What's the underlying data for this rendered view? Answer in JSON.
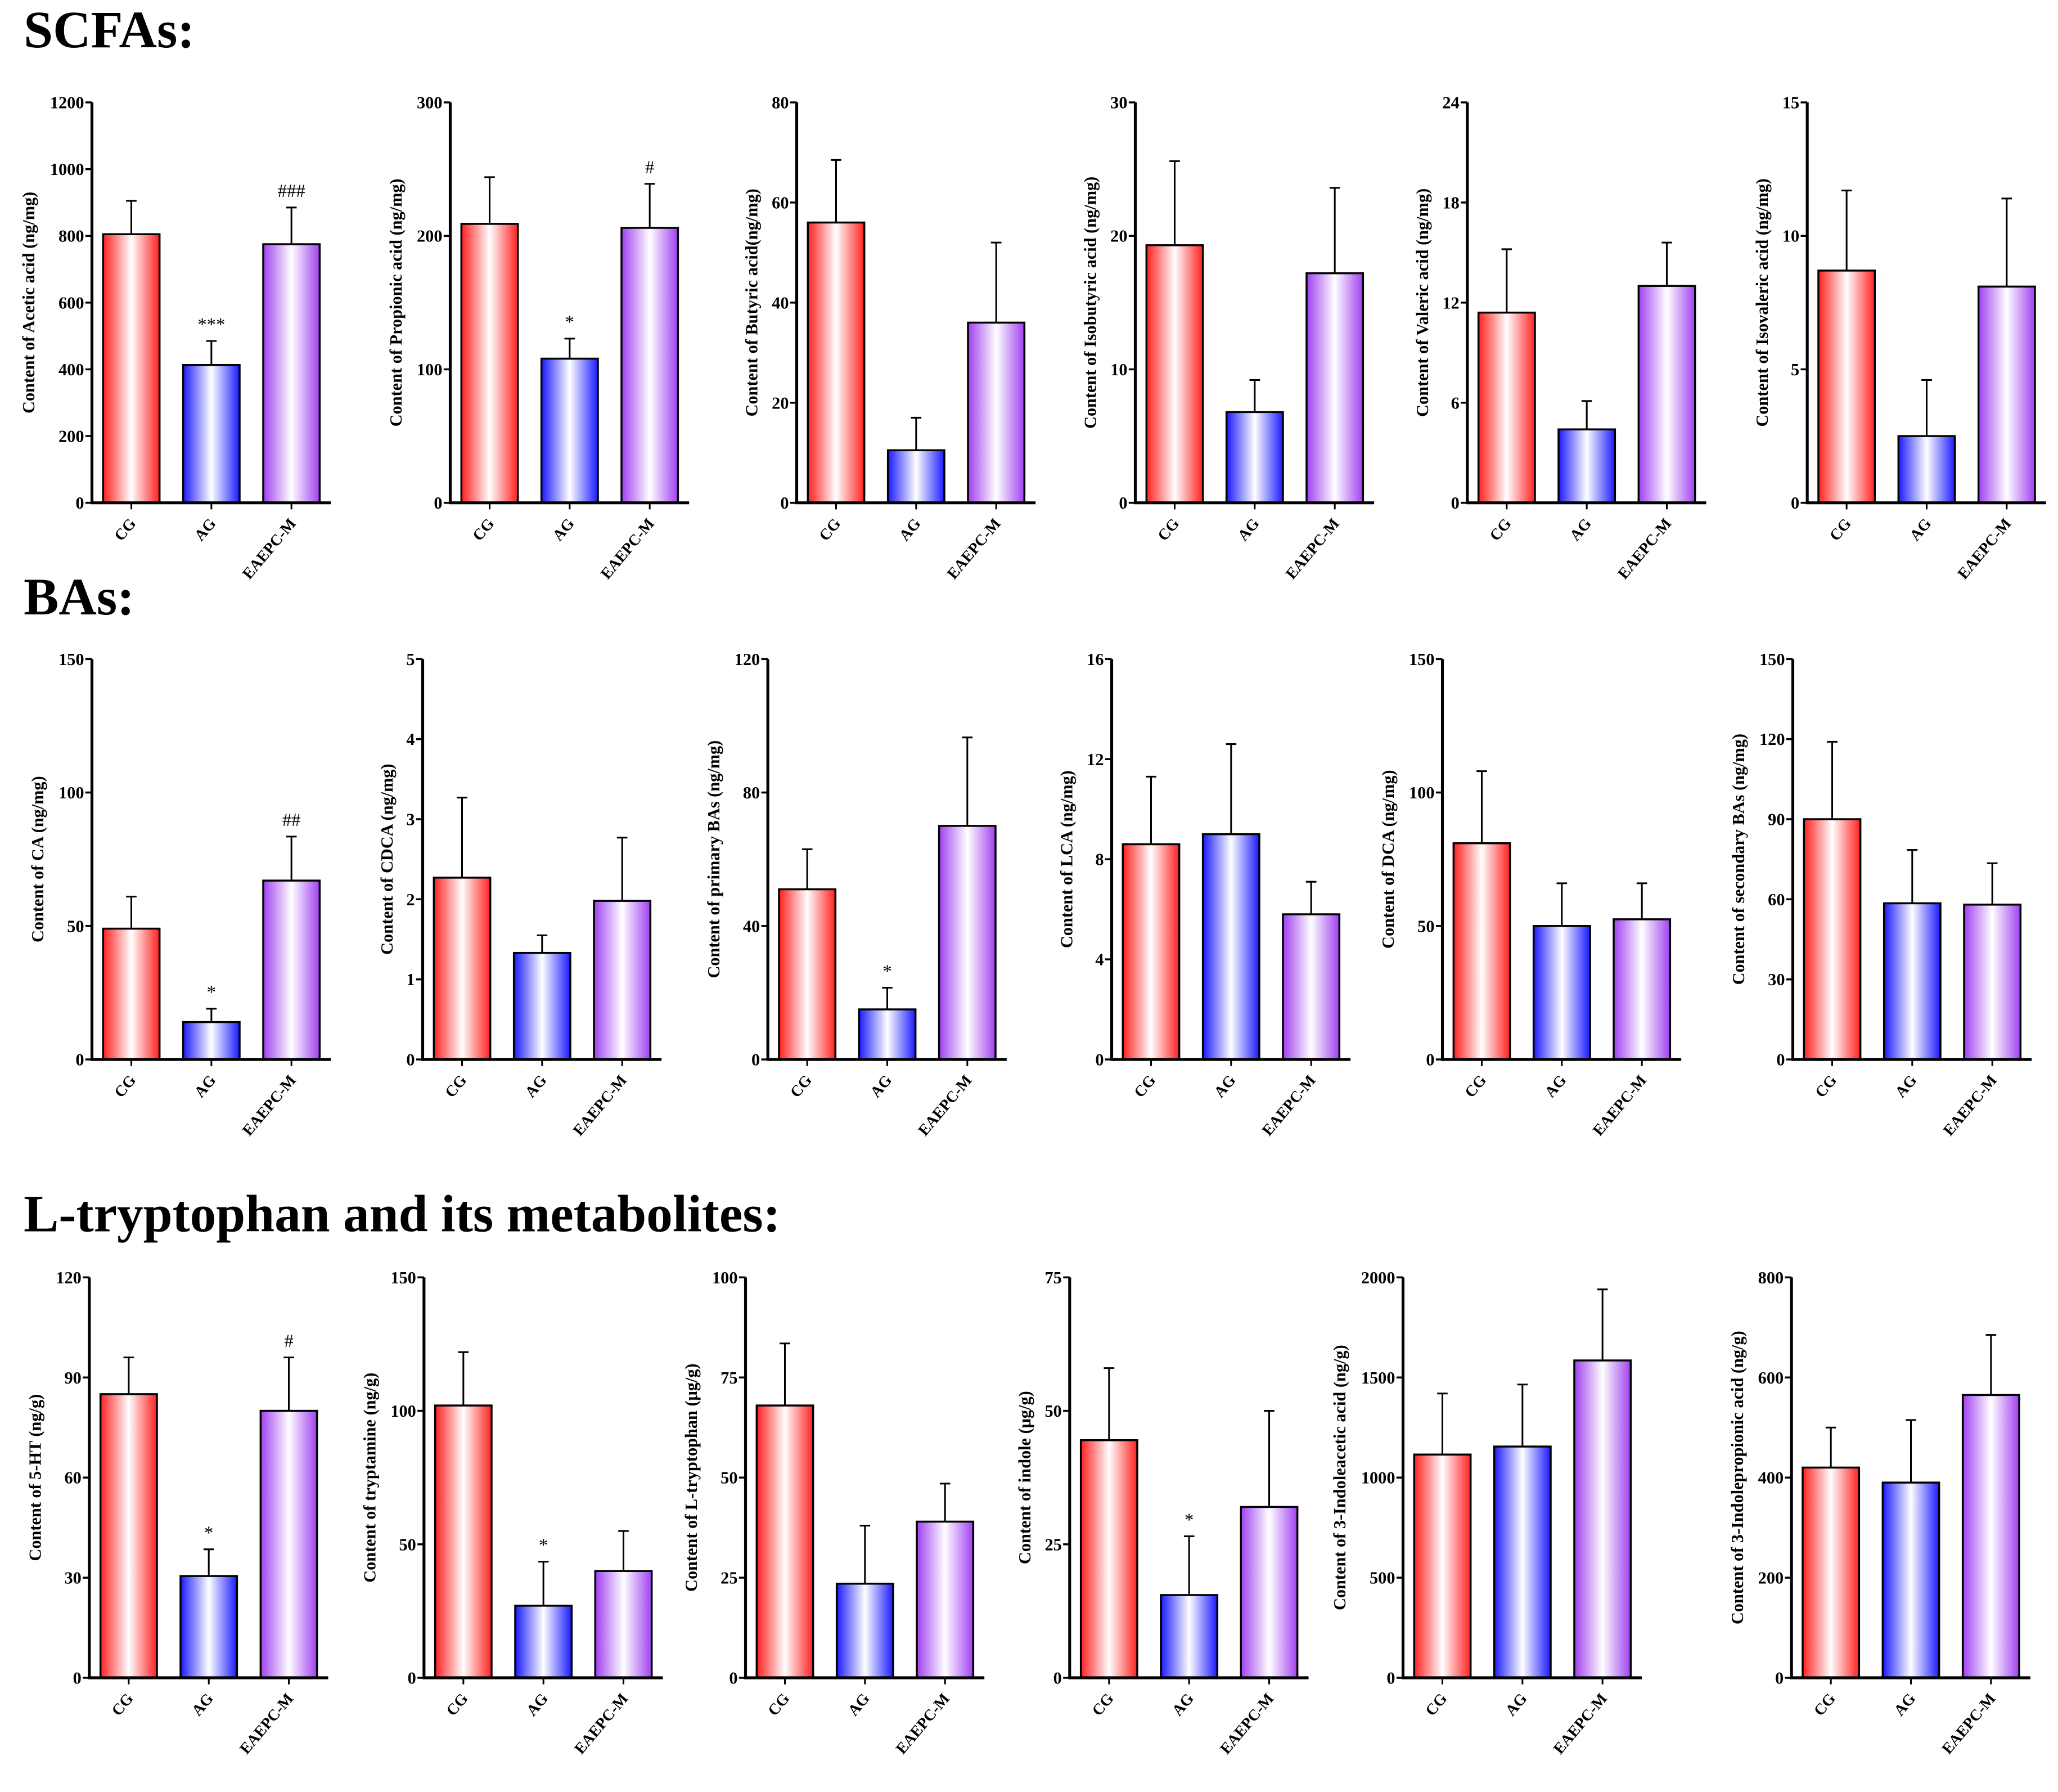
{
  "sections": [
    "SCFAs:",
    "BAs:",
    "L-tryptophan and its metabolites:"
  ],
  "colors": {
    "CG": "#ff2020",
    "AG": "#1a1aff",
    "EAEPC-M": "#a040f0",
    "axis": "#000000"
  },
  "chart_data": [
    {
      "type": "bar",
      "section": 0,
      "ylabel": "Content of Acetic acid (ng/mg)",
      "categories": [
        "CG",
        "AG",
        "EAEPC-M"
      ],
      "values": [
        805,
        413,
        775
      ],
      "errors": [
        100,
        72,
        110
      ],
      "significance": [
        "",
        "***",
        "###"
      ],
      "ylim": [
        0,
        1200
      ],
      "yticks": [
        0,
        200,
        400,
        600,
        800,
        1000,
        1200
      ]
    },
    {
      "type": "bar",
      "section": 0,
      "ylabel": "Content of Propionic acid (ng/mg)",
      "categories": [
        "CG",
        "AG",
        "EAEPC-M"
      ],
      "values": [
        209,
        108,
        206
      ],
      "errors": [
        35,
        15,
        33
      ],
      "significance": [
        "",
        "*",
        "#"
      ],
      "ylim": [
        0,
        300
      ],
      "yticks": [
        0,
        100,
        200,
        300
      ]
    },
    {
      "type": "bar",
      "section": 0,
      "ylabel": "Content of Butyric acid(ng/mg)",
      "categories": [
        "CG",
        "AG",
        "EAEPC-M"
      ],
      "values": [
        56,
        10.5,
        36
      ],
      "errors": [
        12.5,
        6.5,
        16
      ],
      "significance": [
        "",
        "",
        ""
      ],
      "ylim": [
        0,
        80
      ],
      "yticks": [
        0,
        20,
        40,
        60,
        80
      ]
    },
    {
      "type": "bar",
      "section": 0,
      "ylabel": "Content of Isobutyric acid (ng/mg)",
      "categories": [
        "CG",
        "AG",
        "EAEPC-M"
      ],
      "values": [
        19.3,
        6.8,
        17.2
      ],
      "errors": [
        6.3,
        2.4,
        6.4
      ],
      "significance": [
        "",
        "",
        ""
      ],
      "ylim": [
        0,
        30
      ],
      "yticks": [
        0,
        10,
        20,
        30
      ]
    },
    {
      "type": "bar",
      "section": 0,
      "ylabel": "Content of Valeric acid (ng/mg)",
      "categories": [
        "CG",
        "AG",
        "EAEPC-M"
      ],
      "values": [
        11.4,
        4.4,
        13
      ],
      "errors": [
        3.8,
        1.7,
        2.6
      ],
      "significance": [
        "",
        "",
        ""
      ],
      "ylim": [
        0,
        24
      ],
      "yticks": [
        0,
        6,
        12,
        18,
        24
      ]
    },
    {
      "type": "bar",
      "section": 0,
      "ylabel": "Content of Isovaleric acid (ng/mg)",
      "categories": [
        "CG",
        "AG",
        "EAEPC-M"
      ],
      "values": [
        8.7,
        2.5,
        8.1
      ],
      "errors": [
        3.0,
        2.1,
        3.3
      ],
      "significance": [
        "",
        "",
        ""
      ],
      "ylim": [
        0,
        15
      ],
      "yticks": [
        0,
        5,
        10,
        15
      ]
    },
    {
      "type": "bar",
      "section": 1,
      "ylabel": "Content of CA (ng/mg)",
      "categories": [
        "CG",
        "AG",
        "EAEPC-M"
      ],
      "values": [
        49,
        14,
        67
      ],
      "errors": [
        12,
        5,
        16.5
      ],
      "significance": [
        "",
        "*",
        "##"
      ],
      "ylim": [
        0,
        150
      ],
      "yticks": [
        0,
        50,
        100,
        150
      ]
    },
    {
      "type": "bar",
      "section": 1,
      "ylabel": "Content of CDCA (ng/mg)",
      "categories": [
        "CG",
        "AG",
        "EAEPC-M"
      ],
      "values": [
        2.27,
        1.33,
        1.98
      ],
      "errors": [
        1.0,
        0.22,
        0.79
      ],
      "significance": [
        "",
        "",
        ""
      ],
      "ylim": [
        0,
        5
      ],
      "yticks": [
        0,
        1,
        2,
        3,
        4,
        5
      ]
    },
    {
      "type": "bar",
      "section": 1,
      "ylabel": "Content of primary BAs (ng/mg)",
      "categories": [
        "CG",
        "AG",
        "EAEPC-M"
      ],
      "values": [
        51,
        15,
        70
      ],
      "errors": [
        12,
        6.5,
        26.5
      ],
      "significance": [
        "",
        "*",
        ""
      ],
      "ylim": [
        0,
        120
      ],
      "yticks": [
        0,
        40,
        80,
        120
      ]
    },
    {
      "type": "bar",
      "section": 1,
      "ylabel": "Content of LCA (ng/mg)",
      "categories": [
        "CG",
        "AG",
        "EAEPC-M"
      ],
      "values": [
        8.6,
        9,
        5.8
      ],
      "errors": [
        2.7,
        3.6,
        1.3
      ],
      "significance": [
        "",
        "",
        ""
      ],
      "ylim": [
        0,
        16
      ],
      "yticks": [
        0,
        4,
        8,
        12,
        16
      ]
    },
    {
      "type": "bar",
      "section": 1,
      "ylabel": "Content of DCA (ng/mg)",
      "categories": [
        "CG",
        "AG",
        "EAEPC-M"
      ],
      "values": [
        81,
        50,
        52.5
      ],
      "errors": [
        27,
        16,
        13.5
      ],
      "significance": [
        "",
        "",
        ""
      ],
      "ylim": [
        0,
        150
      ],
      "yticks": [
        0,
        50,
        100,
        150
      ]
    },
    {
      "type": "bar",
      "section": 1,
      "ylabel": "Content of secondary BAs (ng/mg)",
      "categories": [
        "CG",
        "AG",
        "EAEPC-M"
      ],
      "values": [
        90,
        58.5,
        58
      ],
      "errors": [
        29,
        20,
        15.5
      ],
      "significance": [
        "",
        "",
        ""
      ],
      "ylim": [
        0,
        150
      ],
      "yticks": [
        0,
        30,
        60,
        90,
        120,
        150
      ]
    },
    {
      "type": "bar",
      "section": 2,
      "ylabel": "Content of 5-HT (ng/g)",
      "categories": [
        "CG",
        "AG",
        "EAEPC-M"
      ],
      "values": [
        85,
        30.5,
        80
      ],
      "errors": [
        11,
        8,
        16
      ],
      "significance": [
        "",
        "*",
        "#"
      ],
      "ylim": [
        0,
        120
      ],
      "yticks": [
        0,
        30,
        60,
        90,
        120
      ]
    },
    {
      "type": "bar",
      "section": 2,
      "ylabel": "Content of tryptamine (ng/g)",
      "categories": [
        "CG",
        "AG",
        "EAEPC-M"
      ],
      "values": [
        102,
        27,
        40
      ],
      "errors": [
        20,
        16.5,
        15
      ],
      "significance": [
        "",
        "*",
        ""
      ],
      "ylim": [
        0,
        150
      ],
      "yticks": [
        0,
        50,
        100,
        150
      ]
    },
    {
      "type": "bar",
      "section": 2,
      "ylabel": "Content of L-tryptophan (μg/g)",
      "categories": [
        "CG",
        "AG",
        "EAEPC-M"
      ],
      "values": [
        68,
        23.5,
        39
      ],
      "errors": [
        15.5,
        14.5,
        9.5
      ],
      "significance": [
        "",
        "",
        ""
      ],
      "ylim": [
        0,
        100
      ],
      "yticks": [
        0,
        25,
        50,
        75,
        100
      ]
    },
    {
      "type": "bar",
      "section": 2,
      "ylabel": "Content of indole (μg/g)",
      "categories": [
        "CG",
        "AG",
        "EAEPC-M"
      ],
      "values": [
        44.5,
        15.5,
        32
      ],
      "errors": [
        13.5,
        11,
        18
      ],
      "significance": [
        "",
        "*",
        ""
      ],
      "ylim": [
        0,
        75
      ],
      "yticks": [
        0,
        25,
        50,
        75
      ]
    },
    {
      "type": "bar",
      "section": 2,
      "ylabel": "Content of 3-Indoleacetic acid (ng/g)",
      "categories": [
        "CG",
        "AG",
        "EAEPC-M"
      ],
      "values": [
        1115,
        1155,
        1585
      ],
      "errors": [
        305,
        310,
        355
      ],
      "significance": [
        "",
        "",
        ""
      ],
      "ylim": [
        0,
        2000
      ],
      "yticks": [
        0,
        500,
        1000,
        1500,
        2000
      ]
    },
    {
      "type": "bar",
      "section": 2,
      "ylabel": "Content of 3-Indolepropionic acid (ng/g)",
      "categories": [
        "CG",
        "AG",
        "EAEPC-M"
      ],
      "values": [
        420,
        390,
        565
      ],
      "errors": [
        80,
        125,
        120
      ],
      "significance": [
        "",
        "",
        ""
      ],
      "ylim": [
        0,
        800
      ],
      "yticks": [
        0,
        200,
        400,
        600,
        800
      ]
    }
  ]
}
